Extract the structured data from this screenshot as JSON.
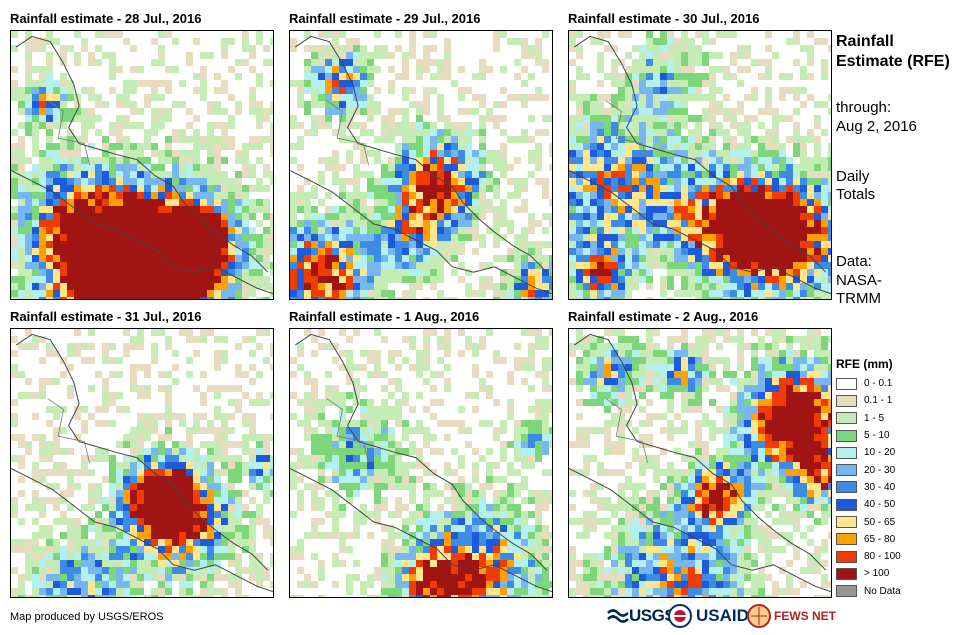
{
  "panels": [
    {
      "title": "Rainfall estimate - 28 Jul., 2016",
      "seed": 11,
      "hotspots": [
        [
          0.55,
          0.85,
          0.2,
          1.6
        ],
        [
          0.35,
          0.92,
          0.18,
          1.3
        ],
        [
          0.12,
          0.25,
          0.06,
          1.0
        ],
        [
          0.7,
          0.78,
          0.1,
          1.1
        ],
        [
          0.2,
          0.65,
          0.15,
          0.7
        ]
      ]
    },
    {
      "title": "Rainfall estimate - 29 Jul., 2016",
      "seed": 23,
      "hotspots": [
        [
          0.55,
          0.55,
          0.12,
          1.3
        ],
        [
          0.1,
          0.9,
          0.14,
          1.3
        ],
        [
          0.18,
          0.18,
          0.08,
          1.1
        ],
        [
          0.92,
          0.95,
          0.08,
          1.0
        ],
        [
          0.45,
          0.75,
          0.1,
          0.7
        ]
      ]
    },
    {
      "title": "Rainfall estimate - 30 Jul., 2016",
      "seed": 37,
      "hotspots": [
        [
          0.8,
          0.75,
          0.16,
          1.6
        ],
        [
          0.15,
          0.55,
          0.18,
          1.0
        ],
        [
          0.55,
          0.7,
          0.15,
          0.9
        ],
        [
          0.1,
          0.9,
          0.08,
          1.0
        ],
        [
          0.35,
          0.15,
          0.1,
          0.6
        ]
      ]
    },
    {
      "title": "Rainfall estimate - 31 Jul., 2016",
      "seed": 41,
      "hotspots": [
        [
          0.62,
          0.7,
          0.14,
          1.3
        ],
        [
          0.55,
          0.6,
          0.1,
          1.0
        ],
        [
          0.25,
          0.95,
          0.12,
          0.8
        ],
        [
          0.95,
          0.5,
          0.05,
          0.8
        ]
      ]
    },
    {
      "title": "Rainfall estimate - 1 Aug., 2016",
      "seed": 53,
      "hotspots": [
        [
          0.7,
          0.88,
          0.16,
          1.2
        ],
        [
          0.25,
          0.45,
          0.12,
          0.7
        ],
        [
          0.92,
          0.4,
          0.06,
          0.7
        ],
        [
          0.5,
          0.95,
          0.1,
          0.8
        ]
      ]
    },
    {
      "title": "Rainfall estimate - 2 Aug., 2016",
      "seed": 67,
      "hotspots": [
        [
          0.85,
          0.32,
          0.14,
          1.7
        ],
        [
          0.55,
          0.6,
          0.08,
          1.3
        ],
        [
          0.4,
          0.92,
          0.18,
          1.0
        ],
        [
          0.15,
          0.15,
          0.08,
          0.9
        ],
        [
          0.42,
          0.15,
          0.06,
          1.0
        ],
        [
          0.95,
          0.55,
          0.08,
          0.9
        ]
      ]
    }
  ],
  "sidebar": {
    "title": "Rainfall Estimate (RFE)",
    "through_label": "through:",
    "through_date": "Aug 2, 2016",
    "totals_line1": "Daily",
    "totals_line2": "Totals",
    "data_line1": "Data:",
    "data_line2": "NASA-",
    "data_line3": "TRMM"
  },
  "legend": {
    "title": "RFE (mm)",
    "items": [
      {
        "label": "0 - 0.1",
        "color": "#ffffff"
      },
      {
        "label": "0.1 - 1",
        "color": "#e8dcc0"
      },
      {
        "label": "1 - 5",
        "color": "#c4ecb4"
      },
      {
        "label": "5 - 10",
        "color": "#7ed67a"
      },
      {
        "label": "10 - 20",
        "color": "#b4f0f0"
      },
      {
        "label": "20 - 30",
        "color": "#78b6f0"
      },
      {
        "label": "30 - 40",
        "color": "#3c8ce6"
      },
      {
        "label": "40 - 50",
        "color": "#1e5adc"
      },
      {
        "label": "50 - 65",
        "color": "#ffe68c"
      },
      {
        "label": "65 - 80",
        "color": "#ffa000"
      },
      {
        "label": "80 - 100",
        "color": "#f03c00"
      },
      {
        "label": "> 100",
        "color": "#a01414"
      },
      {
        "label": "No Data",
        "color": "#969696"
      }
    ]
  },
  "footer": {
    "credit": "Map produced by USGS/EROS"
  },
  "logos": {
    "usgs": "USGS",
    "usaid": "USAID",
    "fews": "FEWS NET"
  }
}
